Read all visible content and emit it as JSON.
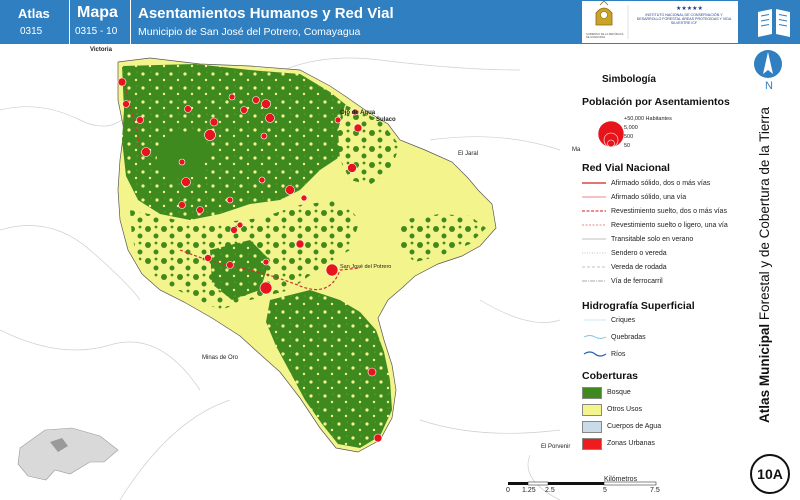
{
  "header": {
    "atlas_label": "Atlas",
    "atlas_code": "0315",
    "mapa_label": "Mapa",
    "mapa_code": "0315 - 10",
    "title": "Asentamientos Humanos y Red Vial",
    "subtitle": "Municipio de San José del Potrero, Comayagua",
    "logo_left_text": "GOBIERNO DE LA REPÚBLICA DE HONDURAS",
    "logo_right_text": "INSTITUTO NACIONAL DE CONSERVACIÓN Y DESARROLLO FORESTAL ÁREAS PROTEGIDAS Y VIDA SILVESTRE ICF"
  },
  "sidebar": {
    "north_label": "N",
    "vertical_title_bold": "Atlas Municipal",
    "vertical_title_rest": " Forestal y de Cobertura de la Tierra",
    "badge": "10A"
  },
  "places": {
    "victoria": "Victoria",
    "ojo_de_agua": "Ojo de Agua",
    "sulaco": "Sulaco",
    "el_jaral": "El Jaral",
    "ma": "Ma",
    "san_jose": "San José del Potrero",
    "minas_de_oro": "Minas de Oro",
    "el_porvenir": "El Porvenir"
  },
  "legend": {
    "title": "Simbología",
    "poblacion_title": "Población por Asentamientos",
    "poblacion_items": [
      "+50,000 Habitantes",
      "5,000",
      "500",
      "50"
    ],
    "redvial_title": "Red Vial Nacional",
    "redvial_items": [
      "Afirmado sólido, dos o más vías",
      "Afirmado sólido, una vía",
      "Revestimiento suelto, dos o más vías",
      "Revestimiento suelto o ligero, una vía",
      "Transitable solo en verano",
      "Sendero o vereda",
      "Vereda de rodada",
      "Vía de ferrocarril"
    ],
    "hidro_title": "Hidrografía Superficial",
    "hidro_items": [
      "Criques",
      "Quebradas",
      "Ríos"
    ],
    "cobert_title": "Coberturas",
    "cobert_items": [
      "Bosque",
      "Otros Usos",
      "Cuerpos de Agua",
      "Zonas Urbanas"
    ],
    "cobert_colors": [
      "#3e8a1f",
      "#f4f48c",
      "#c9dbe8",
      "#ee1c1c"
    ]
  },
  "scale": {
    "ticks": [
      "0",
      "1.25",
      "2.5",
      "5",
      "7.5"
    ],
    "unit": "Kilómetros"
  },
  "colors": {
    "header_blue": "#2f7fc1",
    "forest": "#3e8a1f",
    "other_uses": "#f4f48c",
    "settlement": "#e8141c"
  }
}
